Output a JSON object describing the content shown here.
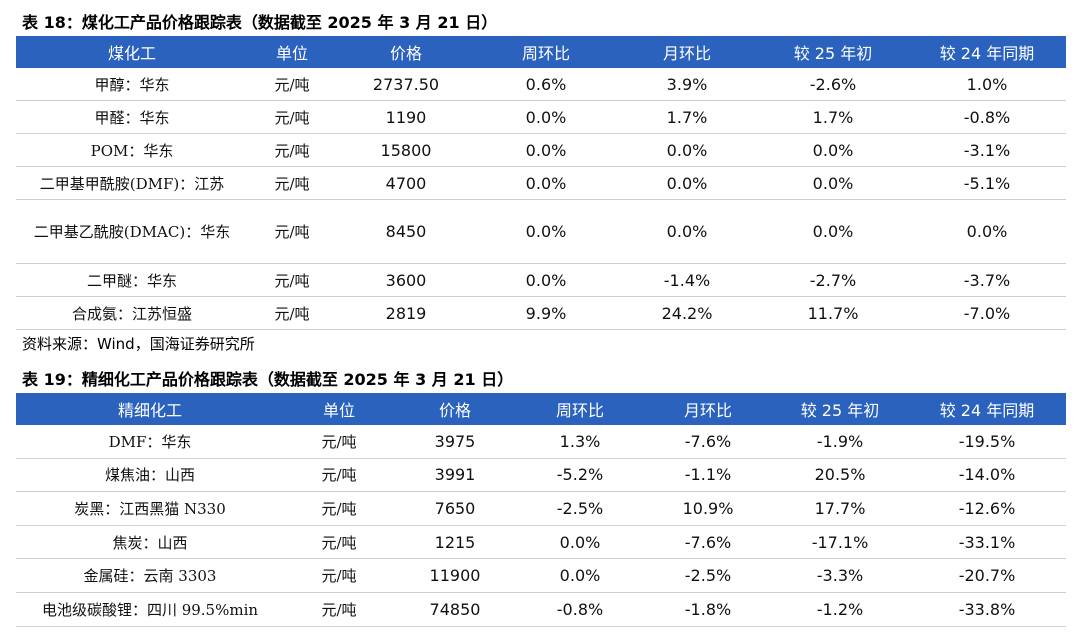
{
  "table18": {
    "caption": "表 18：煤化工产品价格跟踪表（数据截至 2025 年 3 月 21 日）",
    "headers": [
      "煤化工",
      "单位",
      "价格",
      "周环比",
      "月环比",
      "较 25 年初",
      "较 24 年同期"
    ],
    "rows": [
      {
        "name": "甲醇：华东",
        "unit": "元/吨",
        "price": "2737.50",
        "wow": "0.6%",
        "mom": "3.9%",
        "ytd": "-2.6%",
        "yoy": "1.0%"
      },
      {
        "name": "甲醛：华东",
        "unit": "元/吨",
        "price": "1190",
        "wow": "0.0%",
        "mom": "1.7%",
        "ytd": "1.7%",
        "yoy": "-0.8%"
      },
      {
        "name": "POM：华东",
        "unit": "元/吨",
        "price": "15800",
        "wow": "0.0%",
        "mom": "0.0%",
        "ytd": "0.0%",
        "yoy": "-3.1%"
      },
      {
        "name": "二甲基甲酰胺(DMF)：江苏",
        "unit": "元/吨",
        "price": "4700",
        "wow": "0.0%",
        "mom": "0.0%",
        "ytd": "0.0%",
        "yoy": "-5.1%"
      },
      {
        "name": "二甲基乙酰胺(DMAC)：华东",
        "unit": "元/吨",
        "price": "8450",
        "wow": "0.0%",
        "mom": "0.0%",
        "ytd": "0.0%",
        "yoy": "0.0%"
      },
      {
        "name": "二甲醚：华东",
        "unit": "元/吨",
        "price": "3600",
        "wow": "0.0%",
        "mom": "-1.4%",
        "ytd": "-2.7%",
        "yoy": "-3.7%"
      },
      {
        "name": "合成氨：江苏恒盛",
        "unit": "元/吨",
        "price": "2819",
        "wow": "9.9%",
        "mom": "24.2%",
        "ytd": "11.7%",
        "yoy": "-7.0%"
      }
    ]
  },
  "source": "资料来源：Wind，国海证券研究所",
  "table19": {
    "caption": "表 19：精细化工产品价格跟踪表（数据截至 2025 年 3 月 21 日）",
    "headers": [
      "精细化工",
      "单位",
      "价格",
      "周环比",
      "月环比",
      "较 25 年初",
      "较 24 年同期"
    ],
    "rows": [
      {
        "name": "DMF：华东",
        "unit": "元/吨",
        "price": "3975",
        "wow": "1.3%",
        "mom": "-7.6%",
        "ytd": "-1.9%",
        "yoy": "-19.5%"
      },
      {
        "name": "煤焦油：山西",
        "unit": "元/吨",
        "price": "3991",
        "wow": "-5.2%",
        "mom": "-1.1%",
        "ytd": "20.5%",
        "yoy": "-14.0%"
      },
      {
        "name": "炭黑：江西黑猫 N330",
        "unit": "元/吨",
        "price": "7650",
        "wow": "-2.5%",
        "mom": "10.9%",
        "ytd": "17.7%",
        "yoy": "-12.6%"
      },
      {
        "name": "焦炭：山西",
        "unit": "元/吨",
        "price": "1215",
        "wow": "0.0%",
        "mom": "-7.6%",
        "ytd": "-17.1%",
        "yoy": "-33.1%"
      },
      {
        "name": "金属硅：云南 3303",
        "unit": "元/吨",
        "price": "11900",
        "wow": "0.0%",
        "mom": "-2.5%",
        "ytd": "-3.3%",
        "yoy": "-20.7%"
      },
      {
        "name": "电池级碳酸锂：四川 99.5%min",
        "unit": "元/吨",
        "price": "74850",
        "wow": "-0.8%",
        "mom": "-1.8%",
        "ytd": "-1.2%",
        "yoy": "-33.8%"
      }
    ]
  }
}
